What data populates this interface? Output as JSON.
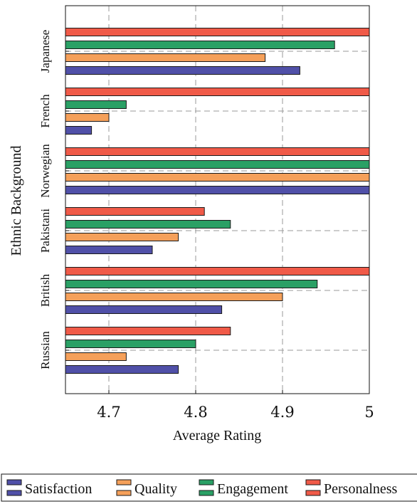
{
  "chart_data": {
    "type": "bar",
    "orientation": "horizontal",
    "title": "",
    "xlabel": "Average Rating",
    "ylabel": "Ethnic Background",
    "xlim": [
      4.65,
      5.0
    ],
    "xticks": [
      "4.7",
      "4.8",
      "4.9",
      "5"
    ],
    "grid": true,
    "legend_position": "bottom",
    "categories": [
      "Japanese",
      "French",
      "Norwegian",
      "Pakistani",
      "British",
      "Russian"
    ],
    "series": [
      {
        "name": "Satisfaction",
        "color": "#5050a8",
        "values": [
          4.92,
          4.68,
          5.0,
          4.75,
          4.83,
          4.78
        ]
      },
      {
        "name": "Quality",
        "color": "#f5a05a",
        "values": [
          4.88,
          4.7,
          5.0,
          4.78,
          4.9,
          4.72
        ]
      },
      {
        "name": "Engagement",
        "color": "#2aa065",
        "values": [
          4.96,
          4.72,
          5.0,
          4.84,
          4.94,
          4.8
        ]
      },
      {
        "name": "Personalness",
        "color": "#f05a48",
        "values": [
          5.0,
          5.0,
          5.0,
          4.81,
          5.0,
          4.84
        ]
      }
    ]
  }
}
